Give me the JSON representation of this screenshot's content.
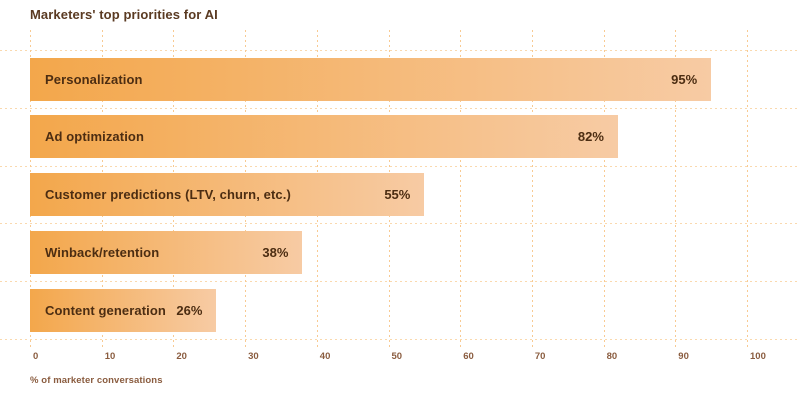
{
  "chart_data": {
    "type": "bar",
    "orientation": "horizontal",
    "title": "Marketers' top priorities for AI",
    "categories": [
      "Personalization",
      "Ad optimization",
      "Customer predictions (LTV, churn, etc.)",
      "Winback/retention",
      "Content generation"
    ],
    "values": [
      95,
      82,
      55,
      38,
      26
    ],
    "value_labels": [
      "95%",
      "82%",
      "55%",
      "38%",
      "26%"
    ],
    "xlabel": "% of marketer conversations",
    "xlim": [
      0,
      100
    ],
    "xticks": [
      0,
      10,
      20,
      30,
      40,
      50,
      60,
      70,
      80,
      90,
      100
    ],
    "grid": true,
    "grid_style": "dotted",
    "legend": false,
    "colors": {
      "bar_gradient_start": "#F3A74B",
      "bar_gradient_end": "#F7CBA4",
      "grid_vertical": "#F8CA92",
      "grid_horizontal": "#FAD9AE",
      "title_text": "#5A3A22",
      "bar_label_text": "#4C2D12",
      "tick_text": "#8A5C3F"
    }
  }
}
